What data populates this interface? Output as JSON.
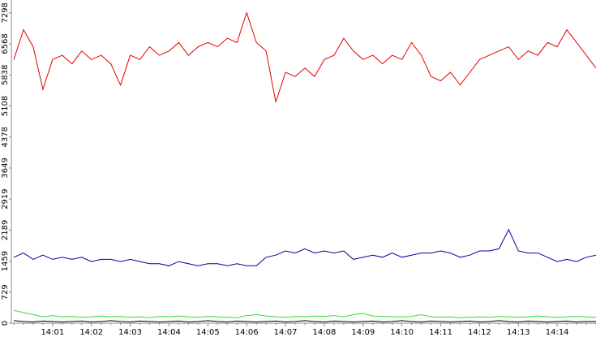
{
  "chart_data": {
    "type": "line",
    "categories": [
      null,
      null,
      null,
      null,
      "14:01",
      null,
      null,
      null,
      "14:02",
      null,
      null,
      null,
      "14:03",
      null,
      null,
      null,
      "14:04",
      null,
      null,
      null,
      "14:05",
      null,
      null,
      null,
      "14:06",
      null,
      null,
      null,
      "14:07",
      null,
      null,
      null,
      "14:08",
      null,
      null,
      null,
      "14:09",
      null,
      null,
      null,
      "14:10",
      null,
      null,
      null,
      "14:11",
      null,
      null,
      null,
      "14:12",
      null,
      null,
      null,
      "14:13",
      null,
      null,
      null,
      "14:14",
      null,
      null,
      null,
      null
    ],
    "series": [
      {
        "color": "#e00000",
        "values": [
          6200,
          6900,
          6500,
          5500,
          6200,
          6300,
          6100,
          6400,
          6200,
          6300,
          6100,
          5600,
          6300,
          6200,
          6500,
          6300,
          6400,
          6600,
          6300,
          6500,
          6600,
          6500,
          6700,
          6600,
          7300,
          6600,
          6400,
          5200,
          5900,
          5800,
          6000,
          5800,
          6200,
          6300,
          6700,
          6400,
          6200,
          6300,
          6100,
          6300,
          6200,
          6600,
          6300,
          5800,
          5700,
          5900,
          5600,
          5900,
          6200,
          6300,
          6400,
          6500,
          6200,
          6400,
          6300,
          6600,
          6500,
          6900,
          6600,
          6300,
          6000
        ]
      },
      {
        "color": "#0000a0",
        "values": [
          1550,
          1650,
          1500,
          1600,
          1500,
          1550,
          1500,
          1550,
          1450,
          1500,
          1500,
          1450,
          1500,
          1450,
          1400,
          1400,
          1350,
          1450,
          1400,
          1350,
          1400,
          1400,
          1350,
          1400,
          1350,
          1350,
          1550,
          1600,
          1700,
          1650,
          1750,
          1650,
          1700,
          1650,
          1700,
          1500,
          1550,
          1600,
          1550,
          1650,
          1550,
          1600,
          1650,
          1650,
          1700,
          1650,
          1550,
          1600,
          1700,
          1700,
          1750,
          2200,
          1700,
          1650,
          1650,
          1550,
          1450,
          1500,
          1450,
          1550,
          1600
        ]
      },
      {
        "color": "#33e033",
        "values": [
          300,
          250,
          200,
          150,
          180,
          150,
          160,
          140,
          150,
          170,
          150,
          160,
          140,
          150,
          130,
          160,
          150,
          170,
          150,
          140,
          160,
          150,
          140,
          130,
          180,
          200,
          170,
          150,
          140,
          160,
          150,
          170,
          160,
          180,
          150,
          200,
          230,
          170,
          160,
          150,
          150,
          160,
          200,
          150,
          140,
          150,
          130,
          140,
          150,
          140,
          160,
          150,
          140,
          150,
          170,
          150,
          140,
          150,
          160,
          150,
          140
        ]
      },
      {
        "color": "#000000",
        "values": [
          60,
          40,
          30,
          50,
          40,
          30,
          40,
          50,
          30,
          40,
          60,
          40,
          30,
          50,
          40,
          30,
          40,
          50,
          30,
          40,
          60,
          40,
          30,
          50,
          40,
          30,
          40,
          50,
          30,
          40,
          60,
          40,
          30,
          50,
          40,
          30,
          40,
          50,
          30,
          40,
          60,
          40,
          30,
          50,
          40,
          30,
          40,
          50,
          30,
          40,
          60,
          40,
          30,
          50,
          40,
          30,
          40,
          50,
          30,
          40,
          40
        ]
      }
    ],
    "ylim": [
      0,
      7600
    ],
    "yticks": [
      0,
      729,
      1459,
      2189,
      2919,
      3649,
      4378,
      5108,
      5838,
      6568,
      7298
    ],
    "grid": false
  }
}
